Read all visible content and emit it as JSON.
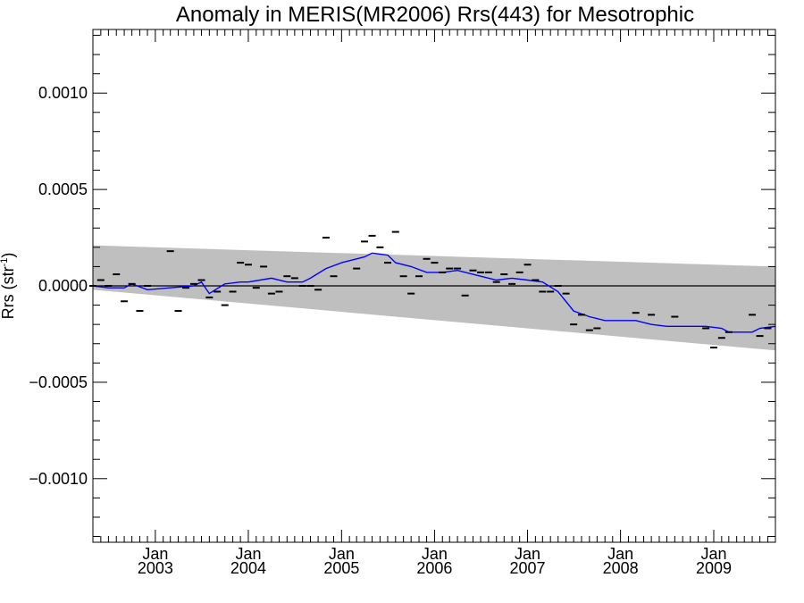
{
  "chart_data": {
    "type": "scatter",
    "title": "Anomaly in MERIS(MR2006) Rrs(443) for Mesotrophic",
    "ylabel": "Rrs (str",
    "ylabel_superscript": "-1",
    "ylabel_close": ")",
    "xlabel": "",
    "x_range": [
      "2002-05-01",
      "2009-08-31"
    ],
    "ylim": [
      -0.00133,
      0.00133
    ],
    "y_ticks": [
      {
        "value": -0.001,
        "label": "−0.0010"
      },
      {
        "value": -0.0005,
        "label": "−0.0005"
      },
      {
        "value": 0.0,
        "label": "0.0000"
      },
      {
        "value": 0.0005,
        "label": "0.0005"
      },
      {
        "value": 0.001,
        "label": "0.0010"
      }
    ],
    "x_ticks": [
      {
        "date": "2003-01-01",
        "month": "Jan",
        "year": "2003"
      },
      {
        "date": "2004-01-01",
        "month": "Jan",
        "year": "2004"
      },
      {
        "date": "2005-01-01",
        "month": "Jan",
        "year": "2005"
      },
      {
        "date": "2006-01-01",
        "month": "Jan",
        "year": "2006"
      },
      {
        "date": "2007-01-01",
        "month": "Jan",
        "year": "2007"
      },
      {
        "date": "2008-01-01",
        "month": "Jan",
        "year": "2008"
      },
      {
        "date": "2009-01-01",
        "month": "Jan",
        "year": "2009"
      }
    ],
    "zero_line": 0.0,
    "confidence_band": {
      "color": "#bfbfbf",
      "start": {
        "date": "2002-05-01",
        "upper": 0.00021,
        "lower": -2e-05
      },
      "end": {
        "date": "2009-08-31",
        "upper": 0.0001,
        "lower": -0.000335
      }
    },
    "series": [
      {
        "kind": "monthly_points",
        "color": "#000000",
        "points": [
          [
            "2002-05-01",
            0.0
          ],
          [
            "2002-06-01",
            3e-05
          ],
          [
            "2002-07-01",
            0.0
          ],
          [
            "2002-08-01",
            6e-05
          ],
          [
            "2002-09-01",
            -8e-05
          ],
          [
            "2002-10-01",
            1e-05
          ],
          [
            "2002-11-01",
            -0.00013
          ],
          [
            "2002-12-01",
            0.0
          ],
          [
            "2003-03-01",
            0.00018
          ],
          [
            "2003-04-01",
            -0.00013
          ],
          [
            "2003-05-01",
            -1e-05
          ],
          [
            "2003-06-01",
            1e-05
          ],
          [
            "2003-07-01",
            3e-05
          ],
          [
            "2003-08-01",
            -6e-05
          ],
          [
            "2003-09-01",
            -3e-05
          ],
          [
            "2003-10-01",
            -0.0001
          ],
          [
            "2003-11-01",
            -3e-05
          ],
          [
            "2003-12-01",
            0.00012
          ],
          [
            "2004-01-01",
            0.00011
          ],
          [
            "2004-02-01",
            -1e-05
          ],
          [
            "2004-03-01",
            0.0001
          ],
          [
            "2004-04-01",
            -4e-05
          ],
          [
            "2004-05-01",
            -3e-05
          ],
          [
            "2004-06-01",
            5e-05
          ],
          [
            "2004-07-01",
            4e-05
          ],
          [
            "2004-08-01",
            0.0
          ],
          [
            "2004-09-01",
            0.0
          ],
          [
            "2004-10-01",
            -2e-05
          ],
          [
            "2004-11-01",
            0.00025
          ],
          [
            "2004-12-01",
            5e-05
          ],
          [
            "2005-03-01",
            9e-05
          ],
          [
            "2005-04-01",
            0.00023
          ],
          [
            "2005-05-01",
            0.00026
          ],
          [
            "2005-06-01",
            0.0002
          ],
          [
            "2005-07-01",
            0.00012
          ],
          [
            "2005-08-01",
            0.00028
          ],
          [
            "2005-09-01",
            5e-05
          ],
          [
            "2005-10-01",
            -4e-05
          ],
          [
            "2005-11-01",
            5e-05
          ],
          [
            "2005-12-01",
            0.00014
          ],
          [
            "2006-01-01",
            0.00012
          ],
          [
            "2006-02-01",
            7e-05
          ],
          [
            "2006-03-01",
            9e-05
          ],
          [
            "2006-04-01",
            9e-05
          ],
          [
            "2006-05-01",
            -5e-05
          ],
          [
            "2006-06-01",
            8e-05
          ],
          [
            "2006-07-01",
            7e-05
          ],
          [
            "2006-08-01",
            7e-05
          ],
          [
            "2006-09-01",
            2e-05
          ],
          [
            "2006-10-01",
            6e-05
          ],
          [
            "2006-11-01",
            1e-05
          ],
          [
            "2006-12-01",
            7e-05
          ],
          [
            "2007-01-01",
            0.00011
          ],
          [
            "2007-02-01",
            3e-05
          ],
          [
            "2007-03-01",
            -3e-05
          ],
          [
            "2007-04-01",
            -3e-05
          ],
          [
            "2007-05-01",
            0.0
          ],
          [
            "2007-06-01",
            -4e-05
          ],
          [
            "2007-07-01",
            -0.0002
          ],
          [
            "2007-08-01",
            -0.00015
          ],
          [
            "2007-09-01",
            -0.00023
          ],
          [
            "2007-10-01",
            -0.00022
          ],
          [
            "2008-03-01",
            -0.00014
          ],
          [
            "2008-05-01",
            -0.00015
          ],
          [
            "2008-08-01",
            -0.00016
          ],
          [
            "2008-12-01",
            -0.00022
          ],
          [
            "2009-01-01",
            -0.00032
          ],
          [
            "2009-02-01",
            -0.00027
          ],
          [
            "2009-03-01",
            -0.00024
          ],
          [
            "2009-06-01",
            -0.00015
          ],
          [
            "2009-07-01",
            -0.00026
          ],
          [
            "2009-08-01",
            -0.00022
          ]
        ]
      },
      {
        "kind": "running_mean",
        "color": "#0000ff",
        "points": [
          [
            "2002-05-01",
            0.0
          ],
          [
            "2002-07-01",
            -1e-05
          ],
          [
            "2002-09-01",
            -1e-05
          ],
          [
            "2002-10-01",
            1e-05
          ],
          [
            "2002-12-01",
            -2e-05
          ],
          [
            "2003-06-01",
            0.0
          ],
          [
            "2003-07-01",
            2e-05
          ],
          [
            "2003-08-01",
            -4e-05
          ],
          [
            "2003-10-01",
            1e-05
          ],
          [
            "2003-12-01",
            2e-05
          ],
          [
            "2004-01-01",
            2e-05
          ],
          [
            "2004-04-01",
            4e-05
          ],
          [
            "2004-06-01",
            2e-05
          ],
          [
            "2004-08-01",
            2e-05
          ],
          [
            "2004-09-01",
            4e-05
          ],
          [
            "2004-11-01",
            9e-05
          ],
          [
            "2005-01-01",
            0.00012
          ],
          [
            "2005-04-01",
            0.00015
          ],
          [
            "2005-05-01",
            0.00017
          ],
          [
            "2005-07-01",
            0.00016
          ],
          [
            "2005-08-01",
            0.00012
          ],
          [
            "2005-10-01",
            0.0001
          ],
          [
            "2005-12-01",
            7e-05
          ],
          [
            "2006-02-01",
            7e-05
          ],
          [
            "2006-04-01",
            8e-05
          ],
          [
            "2006-07-01",
            5e-05
          ],
          [
            "2006-09-01",
            3e-05
          ],
          [
            "2006-11-01",
            4e-05
          ],
          [
            "2007-01-01",
            3e-05
          ],
          [
            "2007-03-01",
            2e-05
          ],
          [
            "2007-05-01",
            -3e-05
          ],
          [
            "2007-07-01",
            -0.00013
          ],
          [
            "2007-09-01",
            -0.00016
          ],
          [
            "2007-11-01",
            -0.00018
          ],
          [
            "2008-03-01",
            -0.00018
          ],
          [
            "2008-05-01",
            -0.0002
          ],
          [
            "2008-07-01",
            -0.00021
          ],
          [
            "2008-12-01",
            -0.00021
          ],
          [
            "2009-02-01",
            -0.00022
          ],
          [
            "2009-03-01",
            -0.00024
          ],
          [
            "2009-06-01",
            -0.00024
          ],
          [
            "2009-07-01",
            -0.00022
          ],
          [
            "2009-08-31",
            -0.00021
          ]
        ]
      }
    ]
  }
}
